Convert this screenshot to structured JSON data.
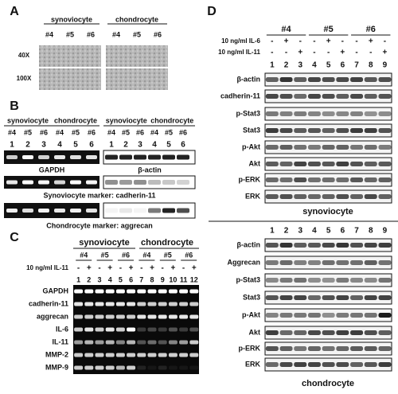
{
  "panels": {
    "A": {
      "label": "A",
      "groups": [
        "synoviocyte",
        "chondrocyte"
      ],
      "columns": [
        "#4",
        "#5",
        "#6",
        "#4",
        "#5",
        "#6"
      ],
      "rows": [
        "40X",
        "100X"
      ]
    },
    "B": {
      "label": "B",
      "groups": [
        "synoviocyte",
        "chondrocyte"
      ],
      "samples": [
        "#4",
        "#5",
        "#6"
      ],
      "lanes": [
        1,
        2,
        3,
        4,
        5,
        6
      ],
      "loading": [
        "GAPDH",
        "β-actin"
      ],
      "captions": [
        "Synoviocyte marker: cadherin-11",
        "Chondrocyte marker: aggrecan"
      ]
    },
    "C": {
      "label": "C",
      "groups": [
        "synoviocyte",
        "chondrocyte"
      ],
      "samples": [
        "#4",
        "#5",
        "#6"
      ],
      "treatment": "10 ng/ml IL-11",
      "signs": [
        "-",
        "+",
        "-",
        "+",
        "-",
        "+",
        "-",
        "+",
        "-",
        "+",
        "-",
        "+"
      ],
      "lanes": [
        1,
        2,
        3,
        4,
        5,
        6,
        7,
        8,
        9,
        10,
        11,
        12
      ],
      "genes": [
        "GAPDH",
        "cadherin-11",
        "aggrecan",
        "IL-6",
        "IL-11",
        "MMP-2",
        "MMP-9"
      ]
    },
    "D": {
      "label": "D",
      "samples": [
        "#4",
        "#5",
        "#6"
      ],
      "treatments": [
        {
          "label": "10 ng/ml IL-6",
          "signs": [
            "-",
            "+",
            "-",
            "-",
            "+",
            "-",
            "-",
            "+",
            "-"
          ]
        },
        {
          "label": "10 ng/ml IL-11",
          "signs": [
            "-",
            "-",
            "+",
            "-",
            "-",
            "+",
            "-",
            "-",
            "+"
          ]
        }
      ],
      "blocks": [
        {
          "lanes": [
            1,
            2,
            3,
            4,
            5,
            6,
            7,
            8,
            9
          ],
          "proteins": [
            "β-actin",
            "cadherin-11",
            "p-Stat3",
            "Stat3",
            "p-Akt",
            "Akt",
            "p-ERK",
            "ERK"
          ],
          "cell": "synoviocyte"
        },
        {
          "lanes": [
            1,
            2,
            3,
            4,
            5,
            6,
            7,
            8,
            9
          ],
          "proteins": [
            "β-actin",
            "Aggrecan",
            "p-Stat3",
            "Stat3",
            "p-Akt",
            "Akt",
            "p-ERK",
            "ERK"
          ],
          "cell": "chondrocyte"
        }
      ]
    }
  }
}
